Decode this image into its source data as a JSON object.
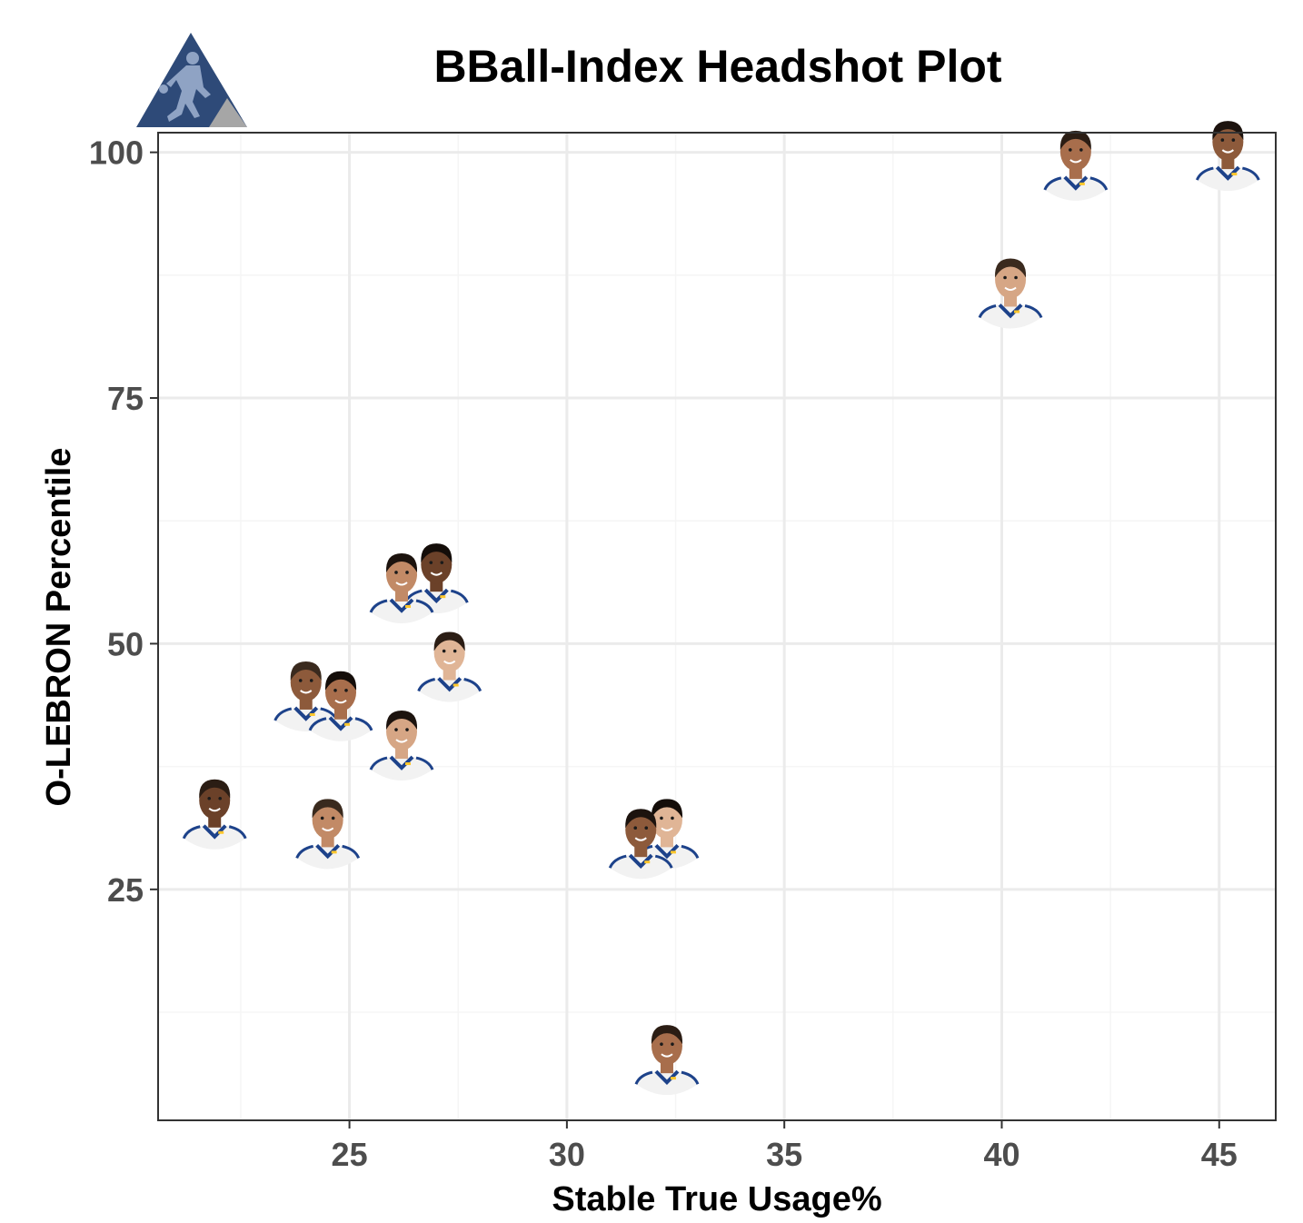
{
  "logo": {
    "name": "bball-index-logo",
    "colors": {
      "primary": "#2e4a78",
      "secondary": "#a6a6a6"
    }
  },
  "chart_data": {
    "type": "scatter",
    "title": "BBall-Index Headshot Plot",
    "xlabel": "Stable True Usage%",
    "ylabel": "O-LEBRON Percentile",
    "xlim": [
      20.6,
      46.3
    ],
    "ylim": [
      1.5,
      102
    ],
    "xticks": [
      25,
      30,
      35,
      40,
      45
    ],
    "yticks": [
      25,
      50,
      75,
      100
    ],
    "grid": true,
    "marker": "player-headshot",
    "points": [
      {
        "x": 45.2,
        "y": 97
      },
      {
        "x": 41.7,
        "y": 96
      },
      {
        "x": 40.2,
        "y": 83
      },
      {
        "x": 27.0,
        "y": 54
      },
      {
        "x": 26.2,
        "y": 53
      },
      {
        "x": 27.3,
        "y": 45
      },
      {
        "x": 24.0,
        "y": 42
      },
      {
        "x": 24.8,
        "y": 41
      },
      {
        "x": 26.2,
        "y": 37
      },
      {
        "x": 21.9,
        "y": 30
      },
      {
        "x": 24.5,
        "y": 28
      },
      {
        "x": 32.3,
        "y": 28
      },
      {
        "x": 31.7,
        "y": 27
      },
      {
        "x": 32.3,
        "y": 5
      }
    ],
    "colors": {
      "panel_border": "#333333",
      "grid_major": "#ebebeb",
      "grid_minor": "#f5f5f5",
      "jersey": "#f2f2f2",
      "jersey_trim": "#1d428a",
      "jersey_accent": "#ffc72c"
    }
  }
}
